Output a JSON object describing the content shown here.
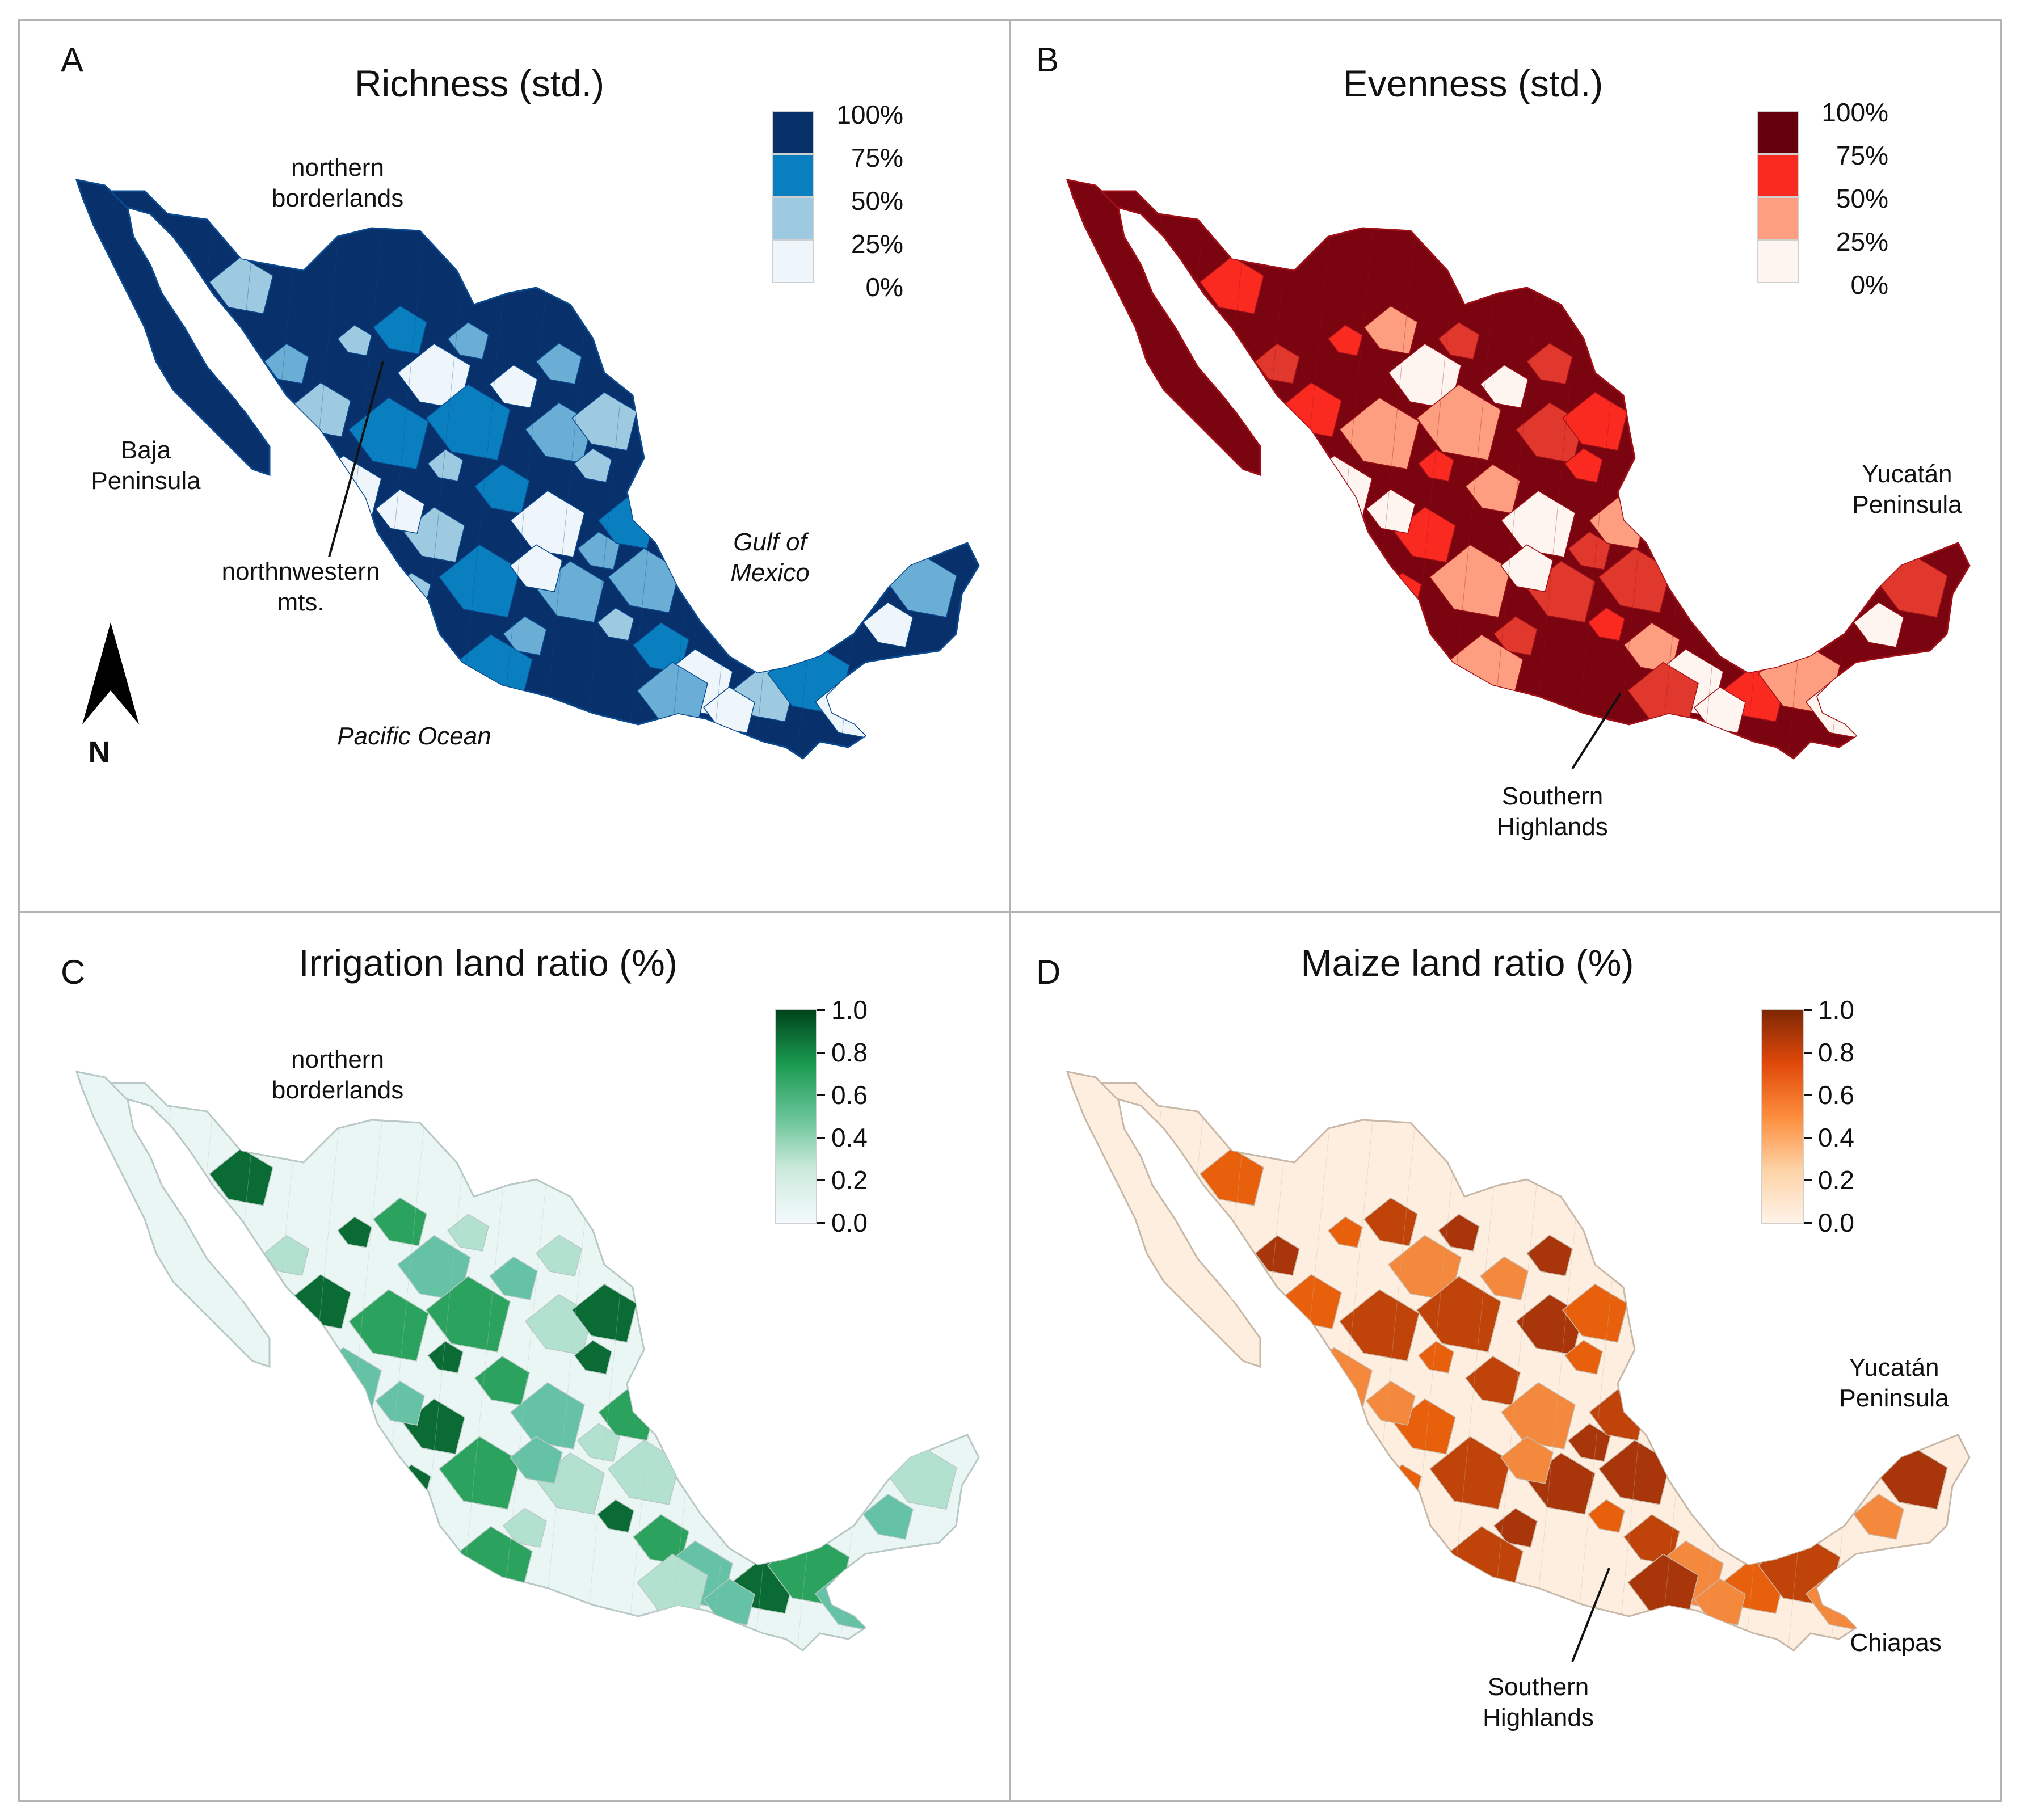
{
  "panels": {
    "a": {
      "letter": "A",
      "title": "Richness (std.)",
      "legend": [
        "100%",
        "75%",
        "50%",
        "25%",
        "0%"
      ],
      "legend_colors": [
        "#08306b",
        "#0a7fc0",
        "#9ecae1",
        "#eff6fb"
      ],
      "map_color": "#08306b",
      "map_stroke": "#0b4a8f",
      "patch_colors": [
        "#9ecae1",
        "#0a7fc0",
        "#eff6fb",
        "#6aaed6"
      ],
      "labels": {
        "north_borderlands": "northern\nborderlands",
        "baja": "Baja\nPeninsula",
        "nw_mts": "northnwestern\nmts.",
        "gulf": "Gulf of\nMexico",
        "pacific": "Pacific Ocean",
        "north_arrow": "N"
      }
    },
    "b": {
      "letter": "B",
      "title": "Evenness (std.)",
      "legend": [
        "100%",
        "75%",
        "50%",
        "25%",
        "0%"
      ],
      "legend_colors": [
        "#67000d",
        "#fb2a20",
        "#fc9e7f",
        "#fff5f0"
      ],
      "map_color": "#7a0510",
      "map_stroke": "#a01018",
      "patch_colors": [
        "#fb2a20",
        "#fc9e7f",
        "#fff5f0",
        "#e0382c"
      ],
      "labels": {
        "yucatan": "Yucatán\nPeninsula",
        "southern": "Southern\nHighlands"
      }
    },
    "c": {
      "letter": "C",
      "title": "Irrigation land ratio (%)",
      "legend_ticks": [
        "1.0",
        "0.8",
        "0.6",
        "0.4",
        "0.2",
        "0.0"
      ],
      "gradient": [
        "#00441b",
        "#1a9a50",
        "#66c295",
        "#cdeadc",
        "#f4fafd"
      ],
      "map_color": "#eaf6f4",
      "map_stroke": "#b8c8c4",
      "patch_colors": [
        "#0b6b34",
        "#2ca25f",
        "#66c2a4",
        "#b2e2cf"
      ],
      "labels": {
        "north_borderlands": "northern\nborderlands"
      }
    },
    "d": {
      "letter": "D",
      "title": "Maize land ratio (%)",
      "legend_ticks": [
        "1.0",
        "0.8",
        "0.6",
        "0.4",
        "0.2",
        "0.0"
      ],
      "gradient": [
        "#7f2704",
        "#e0490a",
        "#fd8d3c",
        "#fdd2a6",
        "#fff3e8"
      ],
      "map_color": "#fdeee0",
      "map_stroke": "#c8b8a8",
      "patch_colors": [
        "#e8600c",
        "#c0430a",
        "#f4883c",
        "#a8360a"
      ],
      "labels": {
        "yucatan": "Yucatán\nPeninsula",
        "chiapas": "Chiapas",
        "southern": "Southern\nHighlands"
      }
    }
  }
}
